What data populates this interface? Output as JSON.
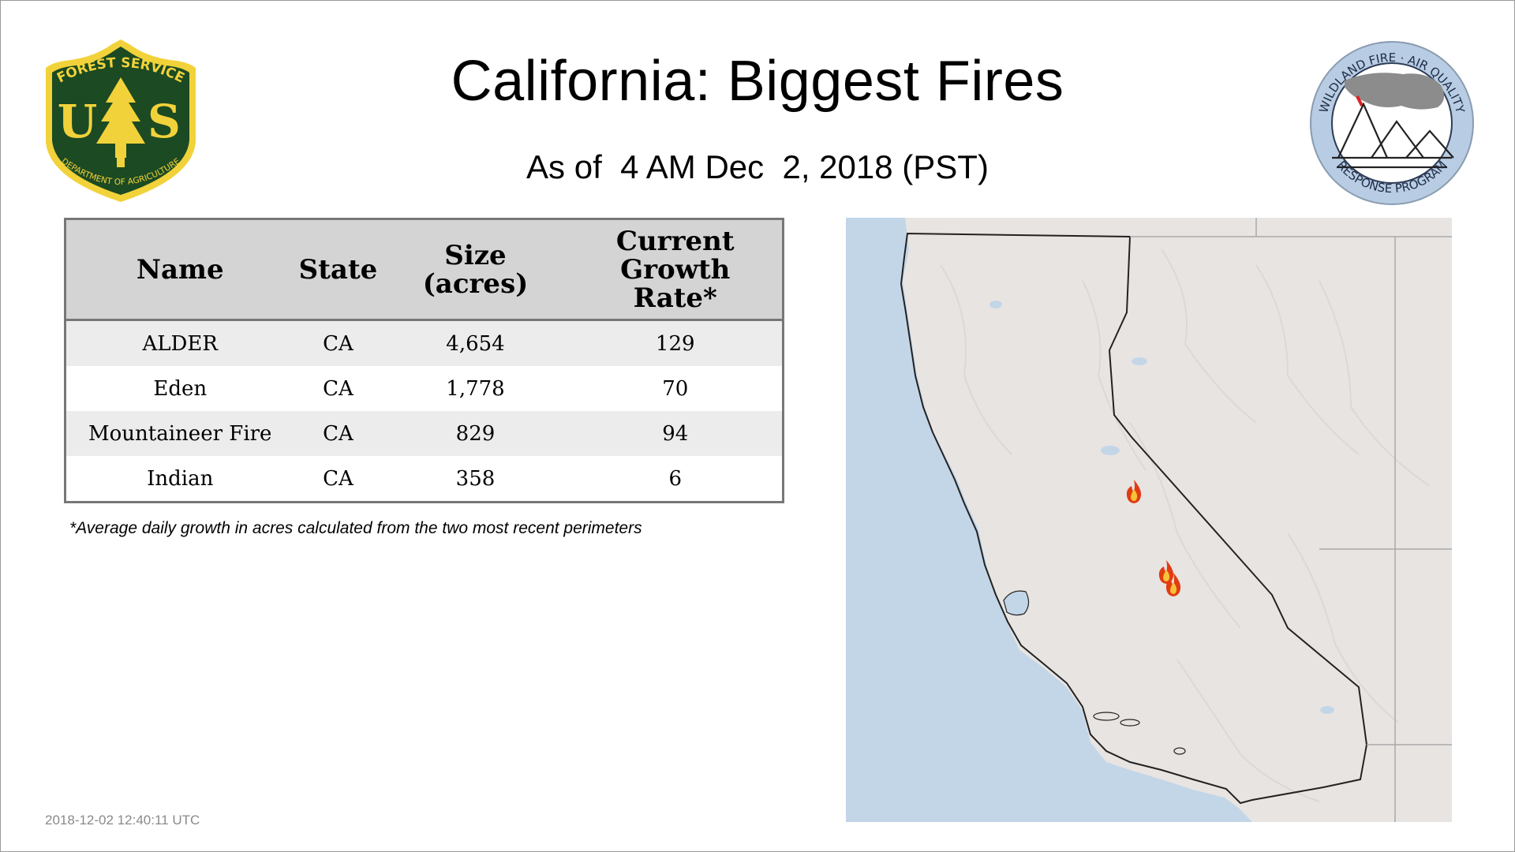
{
  "header": {
    "title": "California: Biggest Fires",
    "subtitle": "As of  4 AM Dec  2, 2018 (PST)"
  },
  "logos": {
    "left": {
      "icon": "usfs-shield-icon",
      "top_text": "FOREST SERVICE",
      "letters_left": "U",
      "letters_right": "S",
      "bottom_text": "DEPARTMENT OF AGRICULTURE",
      "colors": {
        "shield": "#1c4a22",
        "gold": "#f2d23a"
      }
    },
    "right": {
      "icon": "wildland-fire-air-quality-seal-icon",
      "top_text": "WILDLAND FIRE · AIR QUALITY",
      "bottom_text": "RESPONSE PROGRAM",
      "colors": {
        "ring": "#b8cde3",
        "smoke": "#8c8c8c"
      }
    }
  },
  "table": {
    "headers": [
      "Name",
      "State",
      "Size (acres)",
      "Current Growth Rate*"
    ],
    "header_lines": [
      [
        "Name"
      ],
      [
        "State"
      ],
      [
        "Size",
        "(acres)"
      ],
      [
        "Current",
        "Growth",
        "Rate*"
      ]
    ],
    "rows": [
      [
        "ALDER",
        "CA",
        "4,654",
        "129"
      ],
      [
        "Eden",
        "CA",
        "1,778",
        "70"
      ],
      [
        "Mountaineer Fire",
        "CA",
        "829",
        "94"
      ],
      [
        "Indian",
        "CA",
        "358",
        "6"
      ]
    ]
  },
  "footnote": "*Average daily growth in acres calculated from the two most recent perimeters",
  "timestamp": "2018-12-02 12:40:11 UTC",
  "map": {
    "region": "California",
    "fire_marker_icon": "flame-icon",
    "fire_markers": 3,
    "colors": {
      "ocean": "#c3d6e8",
      "land": "#e8e4e2",
      "border": "#222222",
      "flame": "#e23b12"
    }
  }
}
